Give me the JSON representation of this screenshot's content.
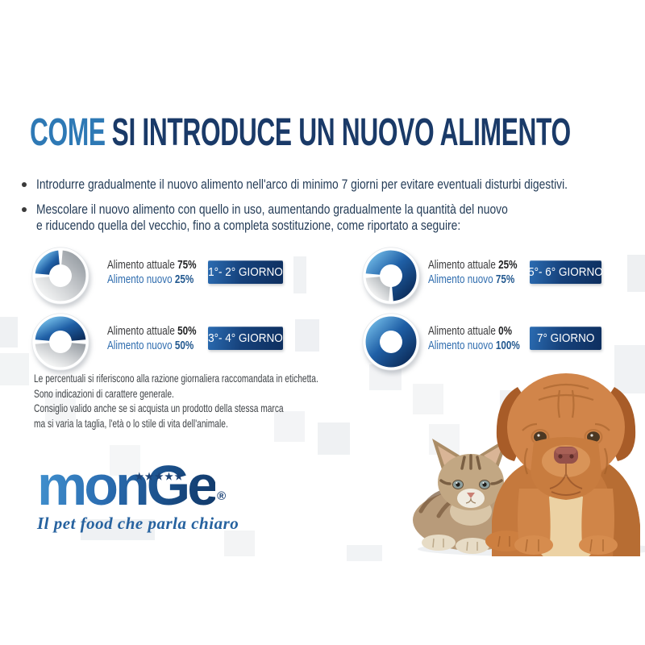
{
  "title": {
    "highlight": "COME",
    "rest": "SI INTRODUCE UN NUOVO ALIMENTO"
  },
  "bullets": [
    {
      "lines": [
        "Introdurre gradualmente il nuovo alimento nell'arco di minimo 7 giorni per evitare eventuali disturbi digestivi."
      ]
    },
    {
      "lines": [
        "Mescolare il nuovo alimento con quello in uso, aumentando gradualmente la quantità del nuovo",
        "e riducendo quella del vecchio, fino a completa sostituzione, come riportato a seguire:"
      ]
    }
  ],
  "chart_data": {
    "type": "pie",
    "subtype": "donut",
    "legend": {
      "blue_represents": "Alimento nuovo",
      "silver_represents": "Alimento attuale"
    },
    "charts": [
      {
        "day_label": "1°- 2° GIORNO",
        "current_label": "Alimento attuale",
        "current_pct": 75,
        "current_pct_text": "75%",
        "new_label": "Alimento nuovo",
        "new_pct": 25,
        "new_pct_text": "25%"
      },
      {
        "day_label": "5°- 6° GIORNO",
        "current_label": "Alimento attuale",
        "current_pct": 25,
        "current_pct_text": "25%",
        "new_label": "Alimento nuovo",
        "new_pct": 75,
        "new_pct_text": "75%"
      },
      {
        "day_label": "3°- 4° GIORNO",
        "current_label": "Alimento attuale",
        "current_pct": 50,
        "current_pct_text": "50%",
        "new_label": "Alimento nuovo",
        "new_pct": 50,
        "new_pct_text": "50%"
      },
      {
        "day_label": "7° GIORNO",
        "current_label": "Alimento attuale",
        "current_pct": 0,
        "current_pct_text": "0%",
        "new_label": "Alimento nuovo",
        "new_pct": 100,
        "new_pct_text": "100%"
      }
    ]
  },
  "footnote": {
    "lines": [
      "Le percentuali si riferiscono alla razione giornaliera raccomandata in etichetta.",
      "Sono indicazioni di carattere generale.",
      "Consiglio valido anche se si acquista un prodotto della stessa marca",
      "ma si varia la taglia, l'età o lo stile di vita dell'animale."
    ]
  },
  "logo": {
    "wordmark": "monGe",
    "stars": "★★★★★",
    "registered": "®",
    "tagline": "Il pet food che parla chiaro"
  },
  "colors": {
    "title_highlight": "#2e79b5",
    "title_main": "#1a3a68",
    "body_text": "#243c57",
    "label_current": "#3a3a3c",
    "label_new": "#2e6cae",
    "badge_bg_dark": "#0e2f5f",
    "badge_bg_light": "#2b6cb2",
    "badge_text": "#ffffff",
    "donut_blue_light": "#66aede",
    "donut_blue_dark": "#0d2f5e",
    "donut_silver": "#c0c3c7",
    "footnote_text": "#3f4347",
    "logo_blue_light": "#4191cf",
    "logo_blue_dark": "#123a6b"
  }
}
